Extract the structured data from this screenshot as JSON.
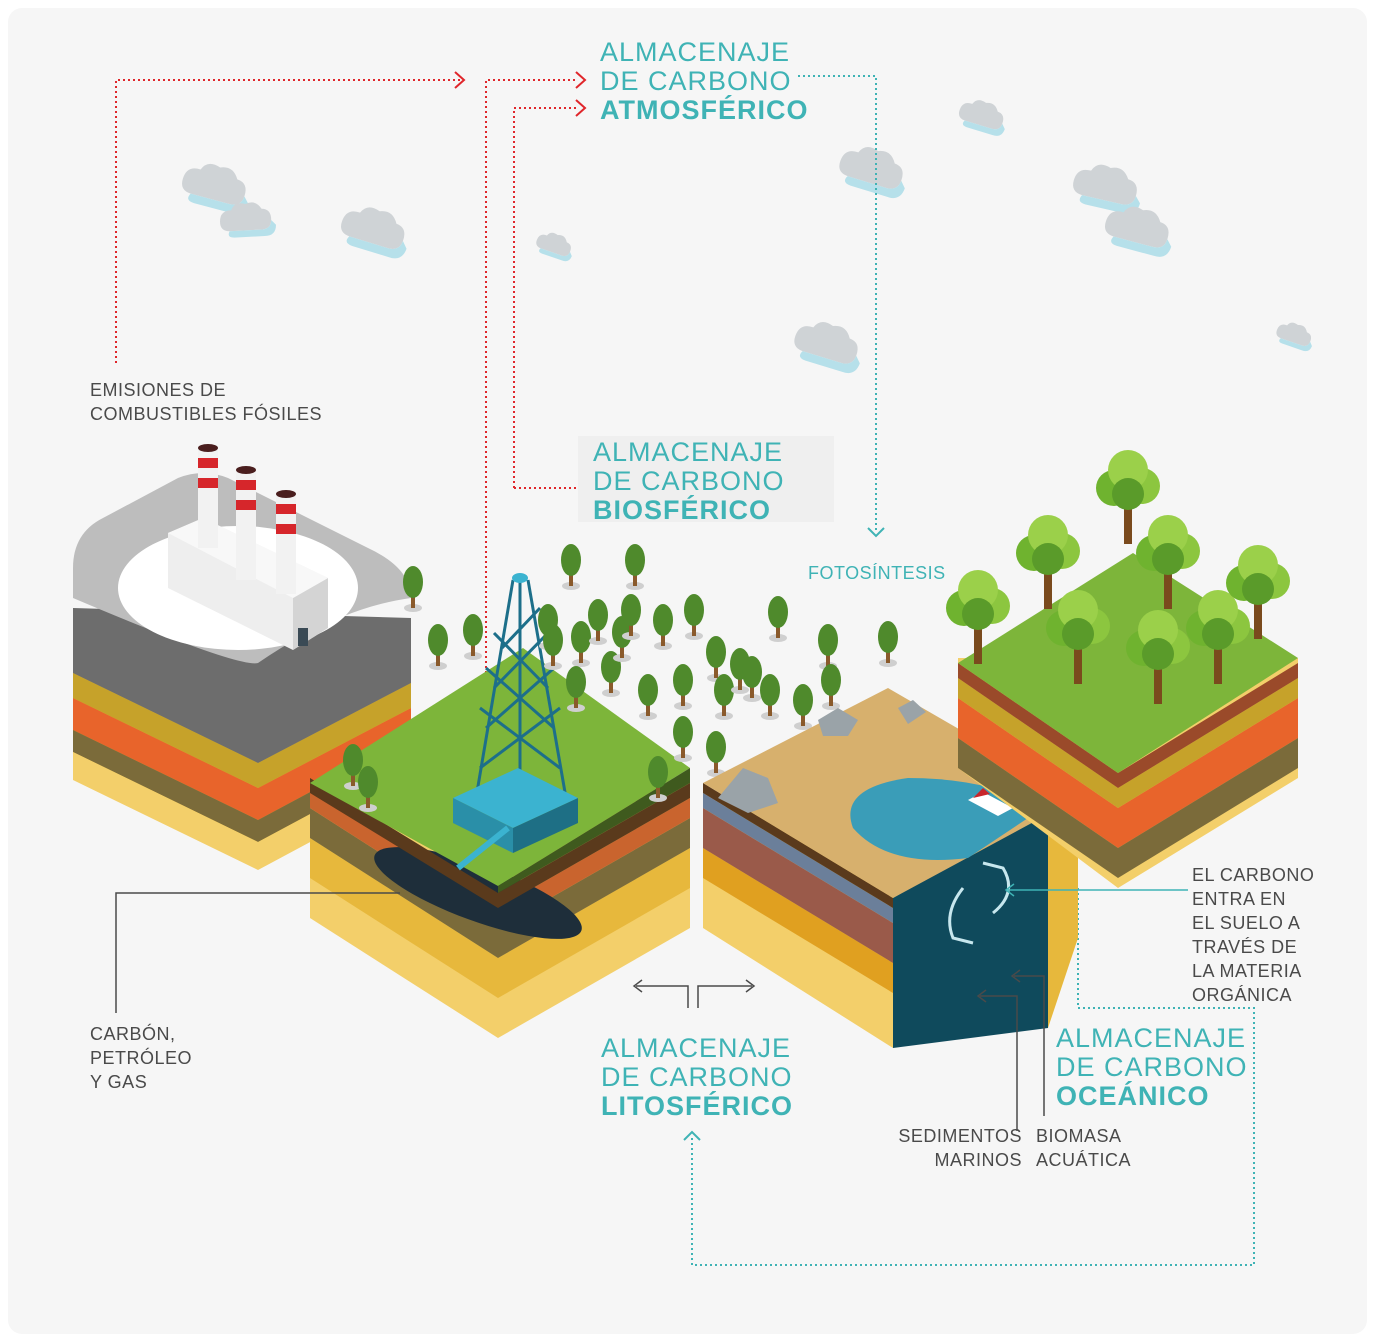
{
  "stores": {
    "atmospheric": {
      "line1": "ALMACENAJE",
      "line2": "DE CARBONO",
      "line3": "ATMOSFÉRICO"
    },
    "biospheric": {
      "line1": "ALMACENAJE",
      "line2": "DE CARBONO",
      "line3": "BIOSFÉRICO"
    },
    "lithospheric": {
      "line1": "ALMACENAJE",
      "line2": "DE CARBONO",
      "line3": "LITOSFÉRICO"
    },
    "oceanic": {
      "line1": "ALMACENAJE",
      "line2": "DE CARBONO",
      "line3": "OCEÁNICO"
    }
  },
  "labels": {
    "emissions": {
      "line1": "EMISIONES DE",
      "line2": "COMBUSTIBLES FÓSILES"
    },
    "photosynthesis": "FOTOSÍNTESIS",
    "fossil": {
      "line1": "CARBÓN,",
      "line2": "PETRÓLEO",
      "line3": "Y GAS"
    },
    "soil": {
      "line1": "EL CARBONO",
      "line2": "ENTRA EN",
      "line3": "EL SUELO A",
      "line4": "TRAVÉS DE",
      "line5": "LA MATERIA",
      "line6": "ORGÁNICA"
    },
    "sediments": {
      "line1": "SEDIMENTOS",
      "line2": "MARINOS"
    },
    "biomass": {
      "line1": "BIOMASA",
      "line2": "ACUÁTICA"
    }
  },
  "colors": {
    "accent": "#3fb3b5",
    "emission_arrow": "#e0262b",
    "text": "#4a4a4a",
    "grass": "#7db53a",
    "sea": "#0f4a5c"
  }
}
